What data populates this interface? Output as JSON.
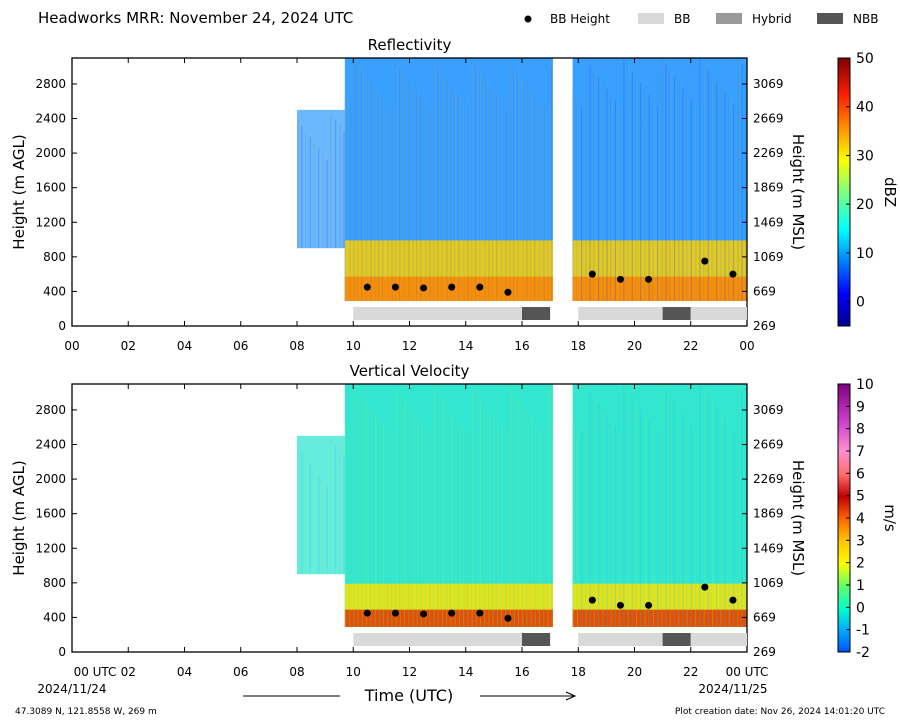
{
  "header": {
    "title": "Headworks MRR:  November 24, 2024 UTC",
    "legend": [
      {
        "label": "BB Height",
        "kind": "dot",
        "color": "#000000"
      },
      {
        "label": "BB",
        "kind": "box",
        "color": "#d9d9d9"
      },
      {
        "label": "Hybrid",
        "kind": "box",
        "color": "#999999"
      },
      {
        "label": "NBB",
        "kind": "box",
        "color": "#555555"
      }
    ]
  },
  "footer": {
    "location": "47.3089 N, 121.8558 W, 269 m",
    "created": "Plot creation date: Nov 26, 2024 14:01:20 UTC",
    "xlabel": "Time (UTC)",
    "start_tick": "00 UTC",
    "start_date": "2024/11/24",
    "end_tick": "00 UTC",
    "end_date": "2024/11/25"
  },
  "chart_data": [
    {
      "type": "heatmap",
      "title": "Reflectivity",
      "ylabel": "Height (m AGL)",
      "y2label": "Height (m MSL)",
      "colorbar_label": "dBZ",
      "xlim": [
        0,
        24
      ],
      "ylim": [
        0,
        3100
      ],
      "x_ticks": [
        "00",
        "02",
        "04",
        "06",
        "08",
        "10",
        "12",
        "14",
        "16",
        "18",
        "20",
        "22",
        "00"
      ],
      "y_ticks": [
        0,
        400,
        800,
        1200,
        1600,
        2000,
        2400,
        2800
      ],
      "y2_ticks": [
        269,
        669,
        1069,
        1469,
        1869,
        2269,
        2669,
        3069
      ],
      "colorbar": {
        "min": -5,
        "max": 50,
        "ticks": [
          0,
          10,
          20,
          30,
          40,
          50
        ]
      },
      "bb_height": [
        {
          "x": 10.5,
          "y": 450
        },
        {
          "x": 11.5,
          "y": 450
        },
        {
          "x": 12.5,
          "y": 440
        },
        {
          "x": 13.5,
          "y": 450
        },
        {
          "x": 14.5,
          "y": 450
        },
        {
          "x": 15.5,
          "y": 390
        },
        {
          "x": 18.5,
          "y": 600
        },
        {
          "x": 19.5,
          "y": 540
        },
        {
          "x": 20.5,
          "y": 540
        },
        {
          "x": 22.5,
          "y": 750
        },
        {
          "x": 23.5,
          "y": 600
        }
      ],
      "bb_types": [
        {
          "type": "BB",
          "start": 10.0,
          "end": 16.0
        },
        {
          "type": "NBB",
          "start": 16.0,
          "end": 17.0
        },
        {
          "type": "BB",
          "start": 18.0,
          "end": 21.0
        },
        {
          "type": "NBB",
          "start": 21.0,
          "end": 22.0
        },
        {
          "type": "BB",
          "start": 22.0,
          "end": 24.0
        }
      ]
    },
    {
      "type": "heatmap",
      "title": "Vertical Velocity",
      "ylabel": "Height (m AGL)",
      "y2label": "Height (m MSL)",
      "colorbar_label": "m/s",
      "xlim": [
        0,
        24
      ],
      "ylim": [
        0,
        3100
      ],
      "x_ticks": [
        "00",
        "02",
        "04",
        "06",
        "08",
        "10",
        "12",
        "14",
        "16",
        "18",
        "20",
        "22",
        "00"
      ],
      "y_ticks": [
        0,
        400,
        800,
        1200,
        1600,
        2000,
        2400,
        2800
      ],
      "y2_ticks": [
        269,
        669,
        1069,
        1469,
        1869,
        2269,
        2669,
        3069
      ],
      "colorbar": {
        "min": -2,
        "max": 10,
        "ticks": [
          -2,
          -1,
          0,
          1,
          2,
          3,
          4,
          5,
          6,
          7,
          8,
          9,
          10
        ]
      },
      "bb_height": [
        {
          "x": 10.5,
          "y": 450
        },
        {
          "x": 11.5,
          "y": 450
        },
        {
          "x": 12.5,
          "y": 440
        },
        {
          "x": 13.5,
          "y": 450
        },
        {
          "x": 14.5,
          "y": 450
        },
        {
          "x": 15.5,
          "y": 390
        },
        {
          "x": 18.5,
          "y": 600
        },
        {
          "x": 19.5,
          "y": 540
        },
        {
          "x": 20.5,
          "y": 540
        },
        {
          "x": 22.5,
          "y": 750
        },
        {
          "x": 23.5,
          "y": 600
        }
      ],
      "bb_types": [
        {
          "type": "BB",
          "start": 10.0,
          "end": 16.0
        },
        {
          "type": "NBB",
          "start": 16.0,
          "end": 17.0
        },
        {
          "type": "BB",
          "start": 18.0,
          "end": 21.0
        },
        {
          "type": "NBB",
          "start": 21.0,
          "end": 22.0
        },
        {
          "type": "BB",
          "start": 22.0,
          "end": 24.0
        }
      ]
    }
  ]
}
